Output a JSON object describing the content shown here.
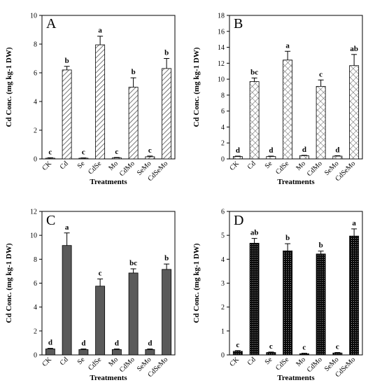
{
  "chart_data": [
    {
      "type": "bar",
      "panel": "A",
      "categories": [
        "CK",
        "Cd",
        "Se",
        "CdSe",
        "Mo",
        "CdMo",
        "SeMo",
        "CdSeMo"
      ],
      "values": [
        0.05,
        6.2,
        0.05,
        7.95,
        0.07,
        5.0,
        0.15,
        6.3
      ],
      "errors": [
        0.03,
        0.25,
        0.02,
        0.6,
        0.03,
        0.65,
        0.05,
        0.7
      ],
      "letters": [
        "c",
        "b",
        "c",
        "a",
        "c",
        "b",
        "c",
        "b"
      ],
      "ylim": [
        0,
        10
      ],
      "yticks": [
        0,
        2,
        4,
        6,
        8,
        10
      ],
      "xlabel": "Treatments",
      "ylabel": "Cd Conc. (mg kg-1 DW)",
      "fill": "diagonal-hatch"
    },
    {
      "type": "bar",
      "panel": "B",
      "categories": [
        "CK",
        "Cd",
        "Se",
        "CdSe",
        "Mo",
        "CdMo",
        "SeMo",
        "CdSeMo"
      ],
      "values": [
        0.3,
        9.7,
        0.3,
        12.4,
        0.4,
        9.1,
        0.35,
        11.7
      ],
      "errors": [
        0.05,
        0.45,
        0.05,
        1.1,
        0.05,
        0.8,
        0.05,
        1.4
      ],
      "letters": [
        "d",
        "bc",
        "d",
        "a",
        "d",
        "c",
        "d",
        "ab"
      ],
      "ylim": [
        0,
        18
      ],
      "yticks": [
        0,
        2,
        4,
        6,
        8,
        10,
        12,
        14,
        16,
        18
      ],
      "xlabel": "Treatments",
      "ylabel": "Cd Conc. (mg kg-1 DW)",
      "fill": "cross-hatch"
    },
    {
      "type": "bar",
      "panel": "C",
      "categories": [
        "CK",
        "Cd",
        "Se",
        "CdSe",
        "Mo",
        "CdMo",
        "SeMo",
        "CdSeMo"
      ],
      "values": [
        0.5,
        9.15,
        0.45,
        5.75,
        0.45,
        6.85,
        0.45,
        7.15
      ],
      "errors": [
        0.05,
        1.05,
        0.05,
        0.6,
        0.05,
        0.35,
        0.05,
        0.45
      ],
      "letters": [
        "d",
        "a",
        "d",
        "c",
        "d",
        "bc",
        "d",
        "b"
      ],
      "ylim": [
        0,
        12
      ],
      "yticks": [
        0,
        2,
        4,
        6,
        8,
        10,
        12
      ],
      "xlabel": "Treatments",
      "ylabel": "Cd Conc. (mg kg-1 DW)",
      "fill": "solid-gray"
    },
    {
      "type": "bar",
      "panel": "D",
      "categories": [
        "CK",
        "Cd",
        "Se",
        "CdSe",
        "Mo",
        "CdMo",
        "SeMo",
        "CdSeMo"
      ],
      "values": [
        0.15,
        4.67,
        0.1,
        4.35,
        0.05,
        4.22,
        0.08,
        4.97
      ],
      "errors": [
        0.03,
        0.2,
        0.02,
        0.3,
        0.02,
        0.12,
        0.02,
        0.3
      ],
      "letters": [
        "c",
        "ab",
        "c",
        "b",
        "c",
        "b",
        "c",
        "a"
      ],
      "ylim": [
        0,
        6
      ],
      "yticks": [
        0,
        1,
        2,
        3,
        4,
        5,
        6
      ],
      "xlabel": "Treatments",
      "ylabel": "Cd Conc. (mg kg-1 DW)",
      "fill": "dotted-black"
    }
  ]
}
